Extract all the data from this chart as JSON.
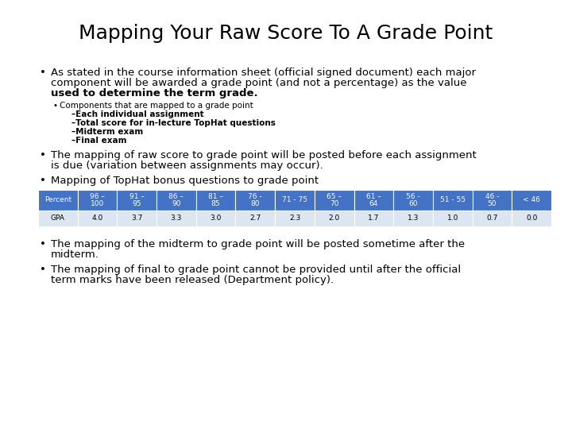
{
  "title": "Mapping Your Raw Score To A Grade Point",
  "background_color": "#ffffff",
  "title_fontsize": 18,
  "body_fontsize": 9.5,
  "small_fontsize": 7.5,
  "bullet1_line1": "As stated in the course information sheet (official signed document) each major",
  "bullet1_line2": "component will be awarded a grade point (and not a percentage) as the value",
  "bullet1_line3": "used to determine the term grade.",
  "sub_bullet1": "Components that are mapped to a grade point",
  "sub_items": [
    "–Each individual assignment",
    "–Total score for in-lecture TopHat questions",
    "–Midterm exam",
    "–Final exam"
  ],
  "bullet2_line1": "The mapping of raw score to grade point will be posted before each assignment",
  "bullet2_line2": "is due (variation between assignments may occur).",
  "bullet3": "Mapping of TopHat bonus questions to grade point",
  "table_header": [
    "Percent",
    "96 –\n100",
    "91 –\n95",
    "86 –\n90",
    "81 –\n85",
    "76 -\n80",
    "71 - 75",
    "65 –\n70",
    "61 –\n64",
    "56 -\n60",
    "51 - 55",
    "46 -\n50",
    "< 46"
  ],
  "table_gpa": [
    "GPA",
    "4.0",
    "3.7",
    "3.3",
    "3.0",
    "2.7",
    "2.3",
    "2.0",
    "1.7",
    "1.3",
    "1.0",
    "0.7",
    "0.0"
  ],
  "header_bg": "#4472c4",
  "header_fg": "#ffffff",
  "row_bg": "#dce6f1",
  "row_fg": "#000000",
  "table_fontsize": 6.5,
  "bullet4_line1": "The mapping of the midterm to grade point will be posted sometime after the",
  "bullet4_line2": "midterm.",
  "bullet5_line1": "The mapping of final to grade point cannot be provided until after the official",
  "bullet5_line2": "term marks have been released (Department policy)."
}
